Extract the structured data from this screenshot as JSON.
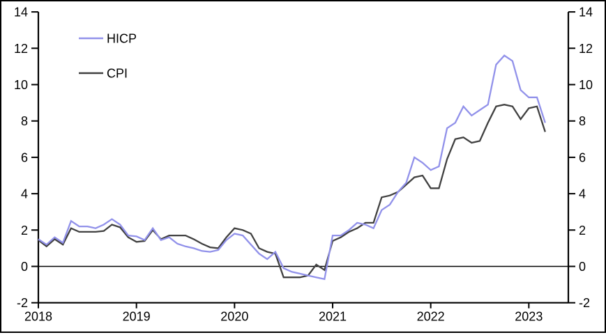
{
  "page": {
    "background": "#ffffff",
    "frame_border_color": "#000000"
  },
  "chart_data": {
    "type": "line",
    "title": "",
    "x_start": "2018-01",
    "x_end": "2023-03",
    "n_points": 63,
    "x_frequency": "monthly",
    "x_tick_labels": [
      "2018",
      "2019",
      "2020",
      "2021",
      "2022",
      "2023"
    ],
    "y_ticks": [
      14,
      12,
      10,
      8,
      6,
      4,
      2,
      0,
      -2
    ],
    "ylim": [
      -2,
      14
    ],
    "y_axis_sides": "both",
    "grid": false,
    "zero_line": true,
    "axis_color": "#000000",
    "legend_position": "top-left-inside",
    "series": [
      {
        "name": "HICP",
        "color": "#9191ea",
        "values": [
          1.5,
          1.2,
          1.6,
          1.3,
          2.5,
          2.2,
          2.2,
          2.1,
          2.3,
          2.6,
          2.3,
          1.7,
          1.65,
          1.45,
          2.1,
          1.45,
          1.6,
          1.25,
          1.1,
          1.0,
          0.85,
          0.8,
          0.9,
          1.45,
          1.8,
          1.7,
          1.2,
          0.7,
          0.4,
          0.8,
          -0.1,
          -0.3,
          -0.4,
          -0.5,
          -0.6,
          -0.7,
          1.7,
          1.7,
          2.0,
          2.4,
          2.3,
          2.1,
          3.1,
          3.4,
          4.1,
          4.6,
          6.0,
          5.7,
          5.3,
          5.5,
          7.6,
          7.9,
          8.8,
          8.3,
          8.6,
          8.9,
          11.1,
          11.6,
          11.3,
          9.7,
          9.3,
          9.3,
          7.9
        ]
      },
      {
        "name": "CPI",
        "color": "#404040",
        "values": [
          1.45,
          1.1,
          1.5,
          1.2,
          2.1,
          1.9,
          1.9,
          1.9,
          1.95,
          2.3,
          2.15,
          1.6,
          1.35,
          1.4,
          2.0,
          1.5,
          1.7,
          1.7,
          1.7,
          1.5,
          1.25,
          1.05,
          1.0,
          1.6,
          2.1,
          2.0,
          1.8,
          1.0,
          0.8,
          0.7,
          -0.6,
          -0.6,
          -0.6,
          -0.5,
          0.1,
          -0.2,
          1.4,
          1.6,
          1.9,
          2.1,
          2.4,
          2.4,
          3.8,
          3.9,
          4.1,
          4.5,
          4.9,
          5.0,
          4.3,
          4.3,
          5.9,
          7.0,
          7.1,
          6.8,
          6.9,
          7.9,
          8.8,
          8.9,
          8.8,
          8.1,
          8.7,
          8.8,
          7.4
        ]
      }
    ]
  }
}
